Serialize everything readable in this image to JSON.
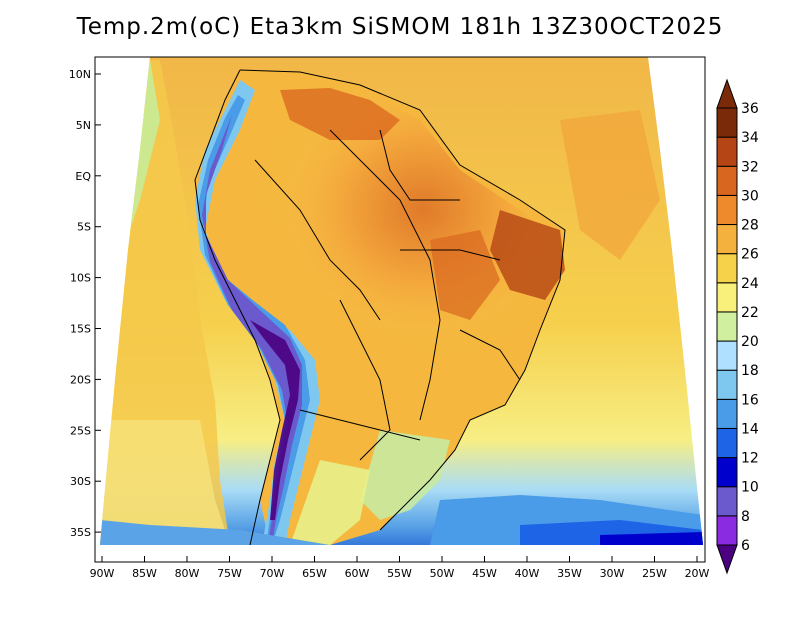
{
  "title": "Temp.2m(oC) Eta3km SiSMOM 181h 13Z30OCT2025",
  "axes": {
    "lat_labels": [
      "10N",
      "5N",
      "EQ",
      "5S",
      "10S",
      "15S",
      "20S",
      "25S",
      "30S",
      "35S"
    ],
    "lon_labels": [
      "90W",
      "85W",
      "80W",
      "75W",
      "70W",
      "65W",
      "60W",
      "55W",
      "50W",
      "45W",
      "40W",
      "35W",
      "30W",
      "25W",
      "20W"
    ]
  },
  "colorbar": {
    "labels": [
      "6",
      "8",
      "10",
      "12",
      "14",
      "16",
      "18",
      "20",
      "22",
      "24",
      "26",
      "28",
      "30",
      "32",
      "34",
      "36"
    ],
    "colors": [
      "#4b0082",
      "#8a2be2",
      "#6a5acd",
      "#0000cd",
      "#1e64e6",
      "#4a9be8",
      "#7ec8f0",
      "#b0e0ff",
      "#d0f0a0",
      "#f8f07a",
      "#f5d24a",
      "#f4b13d",
      "#ef8a2c",
      "#d9661f",
      "#b54514",
      "#7a2a08"
    ]
  },
  "chart_data": {
    "type": "heatmap",
    "variable": "Temp.2m(oC)",
    "model": "Eta3km SiSMOM",
    "forecast_hour": "181h",
    "valid_time": "13Z30OCT2025",
    "lon_range": [
      -90,
      -20
    ],
    "lat_range": [
      -38,
      11
    ],
    "value_range": [
      6,
      36
    ],
    "units": "oC"
  }
}
